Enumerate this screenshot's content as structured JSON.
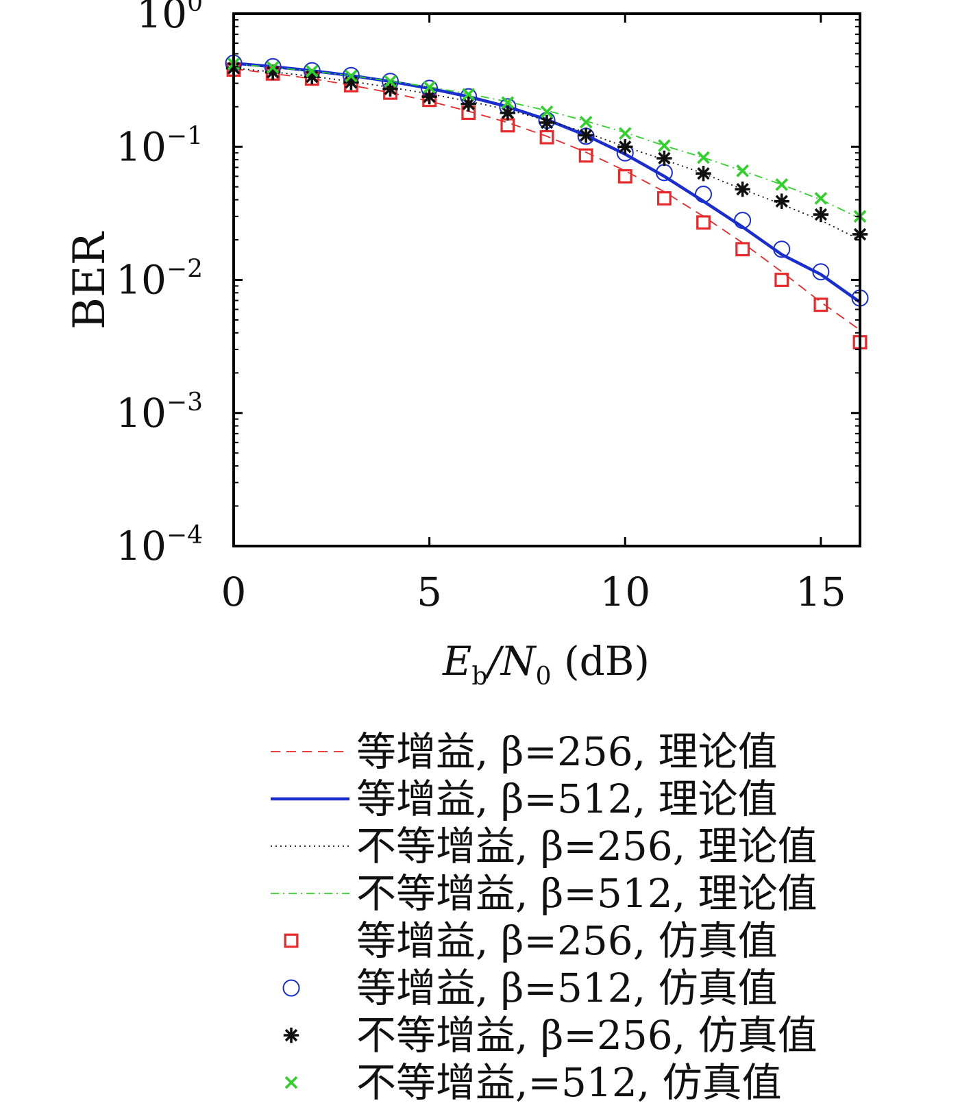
{
  "chart_data": {
    "type": "line",
    "title": "",
    "ylabel": "BER",
    "xlabel": {
      "main": "E",
      "sub1": "b",
      "mid": "/N",
      "sub2": "0",
      "tail": " (dB)"
    },
    "xlim": [
      0,
      16
    ],
    "ylim": [
      0.0001,
      1
    ],
    "yscale": "log",
    "grid": false,
    "legend_position": "below",
    "x_ticks": [
      0,
      5,
      10,
      15
    ],
    "x_tick_labels": [
      "0",
      "5",
      "10",
      "15"
    ],
    "y_ticks": [
      {
        "value": 1,
        "base": "10",
        "exp": "0"
      },
      {
        "value": 0.1,
        "base": "10",
        "exp": "−1"
      },
      {
        "value": 0.01,
        "base": "10",
        "exp": "−2"
      },
      {
        "value": 0.001,
        "base": "10",
        "exp": "−3"
      },
      {
        "value": 0.0001,
        "base": "10",
        "exp": "−4"
      }
    ],
    "x": [
      0,
      1,
      2,
      3,
      4,
      5,
      6,
      7,
      8,
      9,
      10,
      11,
      12,
      13,
      14,
      15,
      16
    ],
    "series": [
      {
        "name": "等增益, β=256, 理论值",
        "kind": "line",
        "style": "dashed",
        "color": "#e8282a",
        "values": [
          0.385,
          0.355,
          0.325,
          0.29,
          0.255,
          0.22,
          0.185,
          0.152,
          0.12,
          0.091,
          0.066,
          0.046,
          0.03,
          0.019,
          0.0115,
          0.0068,
          0.0042
        ]
      },
      {
        "name": "等增益, β=512, 理论值",
        "kind": "line",
        "style": "solid",
        "color": "#1a2ecf",
        "values": [
          0.425,
          0.4,
          0.373,
          0.343,
          0.31,
          0.275,
          0.238,
          0.2,
          0.16,
          0.122,
          0.088,
          0.06,
          0.039,
          0.025,
          0.0155,
          0.011,
          0.0068
        ]
      },
      {
        "name": "不等增益, β=256, 理论值",
        "kind": "line",
        "style": "dotted",
        "color": "#111111",
        "values": [
          0.39,
          0.365,
          0.338,
          0.31,
          0.28,
          0.25,
          0.22,
          0.19,
          0.158,
          0.128,
          0.1,
          0.08,
          0.063,
          0.048,
          0.037,
          0.028,
          0.02
        ]
      },
      {
        "name": "不等增益, β=512, 理论值",
        "kind": "line",
        "style": "dashdot",
        "color": "#2fd02a",
        "values": [
          0.42,
          0.395,
          0.37,
          0.342,
          0.312,
          0.282,
          0.25,
          0.218,
          0.187,
          0.156,
          0.128,
          0.102,
          0.083,
          0.066,
          0.052,
          0.04,
          0.029
        ]
      },
      {
        "name": "等增益, β=256, 仿真值",
        "kind": "marker",
        "marker": "square",
        "color": "#e8282a",
        "values": [
          0.38,
          0.355,
          0.325,
          0.29,
          0.255,
          0.225,
          0.18,
          0.145,
          0.118,
          0.086,
          0.06,
          0.041,
          0.027,
          0.017,
          0.01,
          0.0065,
          0.0034
        ]
      },
      {
        "name": "等增益, β=512, 仿真值",
        "kind": "marker",
        "marker": "circle",
        "color": "#1a2ecf",
        "values": [
          0.425,
          0.4,
          0.373,
          0.343,
          0.31,
          0.275,
          0.238,
          0.2,
          0.158,
          0.12,
          0.09,
          0.064,
          0.044,
          0.028,
          0.017,
          0.0115,
          0.0073
        ]
      },
      {
        "name": "不等增益, β=256, 仿真值",
        "kind": "marker",
        "marker": "asterisk",
        "color": "#111111",
        "values": [
          0.39,
          0.363,
          0.336,
          0.305,
          0.272,
          0.238,
          0.21,
          0.18,
          0.152,
          0.122,
          0.1,
          0.082,
          0.063,
          0.048,
          0.039,
          0.031,
          0.022
        ]
      },
      {
        "name": "不等增益,=512, 仿真值",
        "kind": "marker",
        "marker": "x",
        "color": "#2fd02a",
        "values": [
          0.42,
          0.395,
          0.37,
          0.34,
          0.31,
          0.28,
          0.248,
          0.215,
          0.183,
          0.153,
          0.126,
          0.102,
          0.083,
          0.066,
          0.052,
          0.041,
          0.03
        ]
      }
    ]
  }
}
